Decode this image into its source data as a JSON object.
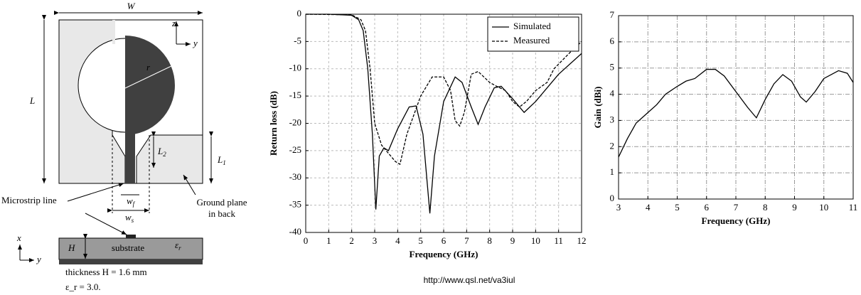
{
  "chart_data": [
    {
      "type": "line",
      "xlabel": "Frequency (GHz)",
      "ylabel": "Return loss (dB)",
      "xlim": [
        0,
        12
      ],
      "ylim": [
        -40,
        0
      ],
      "xticks": [
        0,
        1,
        2,
        3,
        4,
        5,
        6,
        7,
        8,
        9,
        10,
        11,
        12
      ],
      "yticks": [
        0,
        -5,
        -10,
        -15,
        -20,
        -25,
        -30,
        -35,
        -40
      ],
      "grid": true,
      "legend": "upper right",
      "series": [
        {
          "name": "Simulated",
          "color": "#000000",
          "dash": "solid",
          "x": [
            0,
            1,
            2,
            2.3,
            2.5,
            2.7,
            2.9,
            3.05,
            3.2,
            3.4,
            3.6,
            4,
            4.5,
            4.8,
            5.1,
            5.4,
            5.6,
            6,
            6.5,
            6.8,
            7.2,
            7.5,
            7.8,
            8.2,
            8.5,
            9,
            9.5,
            10,
            11,
            12
          ],
          "values": [
            0,
            0,
            -0.2,
            -1,
            -3,
            -10,
            -22,
            -35.8,
            -26,
            -24.5,
            -25,
            -21,
            -17,
            -16.8,
            -22,
            -36.5,
            -26,
            -16,
            -11.5,
            -12.5,
            -17,
            -20.2,
            -17,
            -13.5,
            -13.2,
            -15.5,
            -18,
            -16,
            -11,
            -7.2
          ]
        },
        {
          "name": "Measured",
          "color": "#000000",
          "dash": "dashed",
          "x": [
            0,
            2,
            2.4,
            2.6,
            2.8,
            3,
            3.3,
            3.6,
            3.9,
            4.1,
            4.4,
            5,
            5.5,
            6,
            6.3,
            6.5,
            6.7,
            6.9,
            7.2,
            7.5,
            8,
            8.3,
            8.7,
            9,
            9.3,
            9.6,
            10,
            10.5,
            10.8,
            11.5,
            12
          ],
          "values": [
            0,
            -0.1,
            -1,
            -3,
            -10,
            -20,
            -24,
            -25.5,
            -27,
            -27.5,
            -22,
            -15,
            -11.5,
            -11.5,
            -14,
            -19.5,
            -20.5,
            -18,
            -11,
            -10.5,
            -12.5,
            -13.2,
            -14,
            -16,
            -17,
            -16,
            -14,
            -12.5,
            -10,
            -7,
            -5
          ]
        }
      ]
    },
    {
      "type": "line",
      "xlabel": "Frequency (GHz)",
      "ylabel": "Gain (dBi)",
      "xlim": [
        3,
        11
      ],
      "ylim": [
        0,
        7
      ],
      "xticks": [
        3,
        4,
        5,
        6,
        7,
        8,
        9,
        10,
        11
      ],
      "yticks": [
        0,
        1,
        2,
        3,
        4,
        5,
        6,
        7
      ],
      "grid": true,
      "series": [
        {
          "color": "#000000",
          "dash": "solid",
          "x": [
            3,
            3.3,
            3.6,
            4,
            4.3,
            4.6,
            5,
            5.3,
            5.6,
            6,
            6.3,
            6.6,
            7,
            7.4,
            7.7,
            8,
            8.3,
            8.6,
            8.9,
            9.2,
            9.4,
            9.7,
            10,
            10.5,
            10.8,
            11
          ],
          "values": [
            1.6,
            2.3,
            2.9,
            3.3,
            3.6,
            4,
            4.3,
            4.5,
            4.6,
            4.95,
            4.95,
            4.7,
            4.1,
            3.5,
            3.1,
            3.8,
            4.4,
            4.75,
            4.5,
            3.9,
            3.7,
            4.1,
            4.6,
            4.9,
            4.8,
            4.45
          ]
        }
      ]
    }
  ],
  "diagram": {
    "W": "W",
    "L": "L",
    "L1": {
      "main": "L",
      "sub": "1"
    },
    "L2": {
      "main": "L",
      "sub": "2"
    },
    "r": "r",
    "wf": {
      "main": "w",
      "sub": "f"
    },
    "ws": {
      "main": "w",
      "sub": "s"
    },
    "microstrip": "Microstrip line",
    "ground": [
      "Ground plane",
      "in back"
    ],
    "substrate": "substrate",
    "H": "H",
    "er": {
      "main": "ε",
      "sub": "r"
    },
    "axes_top": [
      "z",
      "y"
    ],
    "axes_bottom": [
      "x",
      "y"
    ],
    "notes": [
      "thickness H = 1.6 mm",
      "ε_r = 3.0."
    ]
  },
  "footer": "http://www.qsl.net/va3iul"
}
